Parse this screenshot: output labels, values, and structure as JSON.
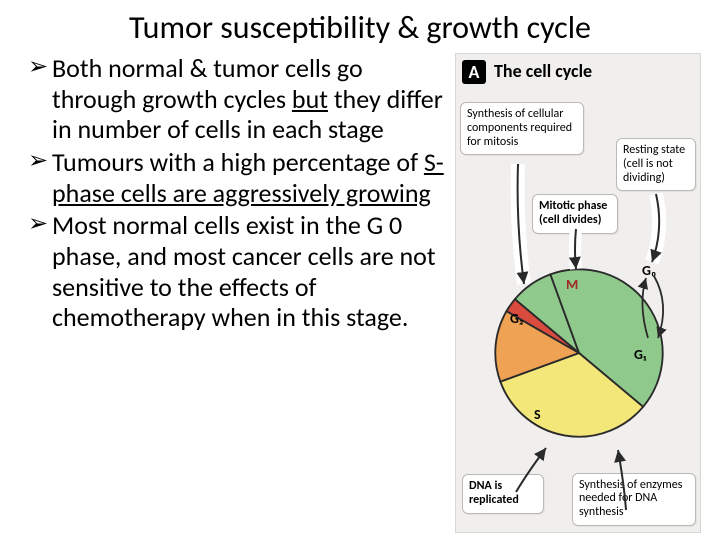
{
  "title": "Tumor susceptibility & growth cycle",
  "bullets": [
    {
      "pre": "Both normal & tumor cells go through growth cycles ",
      "u": "but",
      "post": " they differ in number of cells in each stage"
    },
    {
      "pre": "Tumours with a high percentage of ",
      "u": "S-phase cells are aggressively growing",
      "post": ""
    },
    {
      "pre": "Most normal cells exist in the G 0 phase, and most cancer cells are not sensitive to the effects of chemotherapy when in this stage.",
      "u": "",
      "post": ""
    }
  ],
  "diagram": {
    "panel_letter": "A",
    "panel_title": "The cell cycle",
    "callouts": {
      "synthesis_mitosis": "Synthesis of cellular components required for mitosis",
      "resting": "Resting state (cell is not dividing)",
      "mitotic_phase": "Mitotic phase (cell divides)",
      "dna_replicated": "DNA is replicated",
      "enzymes": "Synthesis of enzymes needed for DNA synthesis"
    },
    "phases": {
      "G0": "G₀",
      "G1": "G₁",
      "S": "S",
      "G2": "G₂",
      "M": "M"
    },
    "pie": {
      "type": "pie",
      "slices": [
        {
          "name": "G0",
          "start_deg": -50,
          "end_deg": -20,
          "color": "#8fc98c"
        },
        {
          "name": "G1",
          "start_deg": -20,
          "end_deg": 130,
          "color": "#8fc98c"
        },
        {
          "name": "S",
          "start_deg": 130,
          "end_deg": 250,
          "color": "#f3e77a"
        },
        {
          "name": "G2",
          "start_deg": 250,
          "end_deg": 300,
          "color": "#f0a254"
        },
        {
          "name": "M",
          "start_deg": 300,
          "end_deg": 310,
          "color": "#d94a3f"
        }
      ],
      "stroke": "#2a2a2a",
      "stroke_width": 2,
      "background": "#f0efed"
    }
  }
}
